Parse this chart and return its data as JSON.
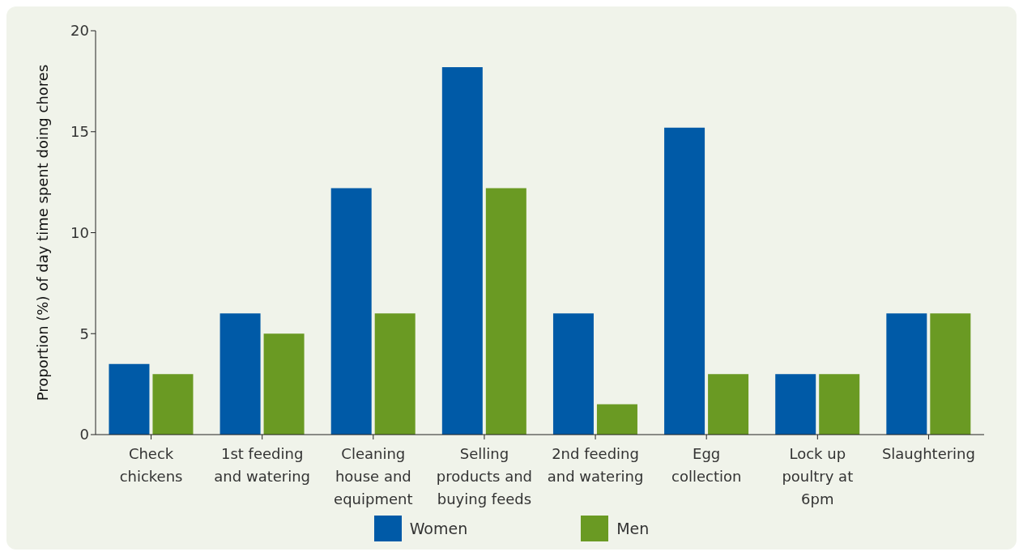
{
  "chart_data": {
    "type": "bar",
    "ylabel": "Proportion (%) of day time spent doing chores",
    "categories": [
      "Check chickens",
      "1st feeding and watering",
      "Cleaning house and equipment",
      "Selling products and buying feeds",
      "2nd feeding and watering",
      "Egg collection",
      "Lock up poultry at 6pm",
      "Slaughtering"
    ],
    "series": [
      {
        "name": "Women",
        "color": "#005aa7",
        "values": [
          3.5,
          6,
          12.2,
          18.2,
          6,
          15.2,
          3,
          6
        ]
      },
      {
        "name": "Men",
        "color": "#6a9a23",
        "values": [
          3,
          5,
          6,
          12.2,
          1.5,
          3,
          3,
          6
        ]
      }
    ],
    "ylim": [
      0,
      20
    ],
    "yticks": [
      0,
      5,
      10,
      15,
      20
    ],
    "grid": false,
    "legend": "bottom"
  }
}
